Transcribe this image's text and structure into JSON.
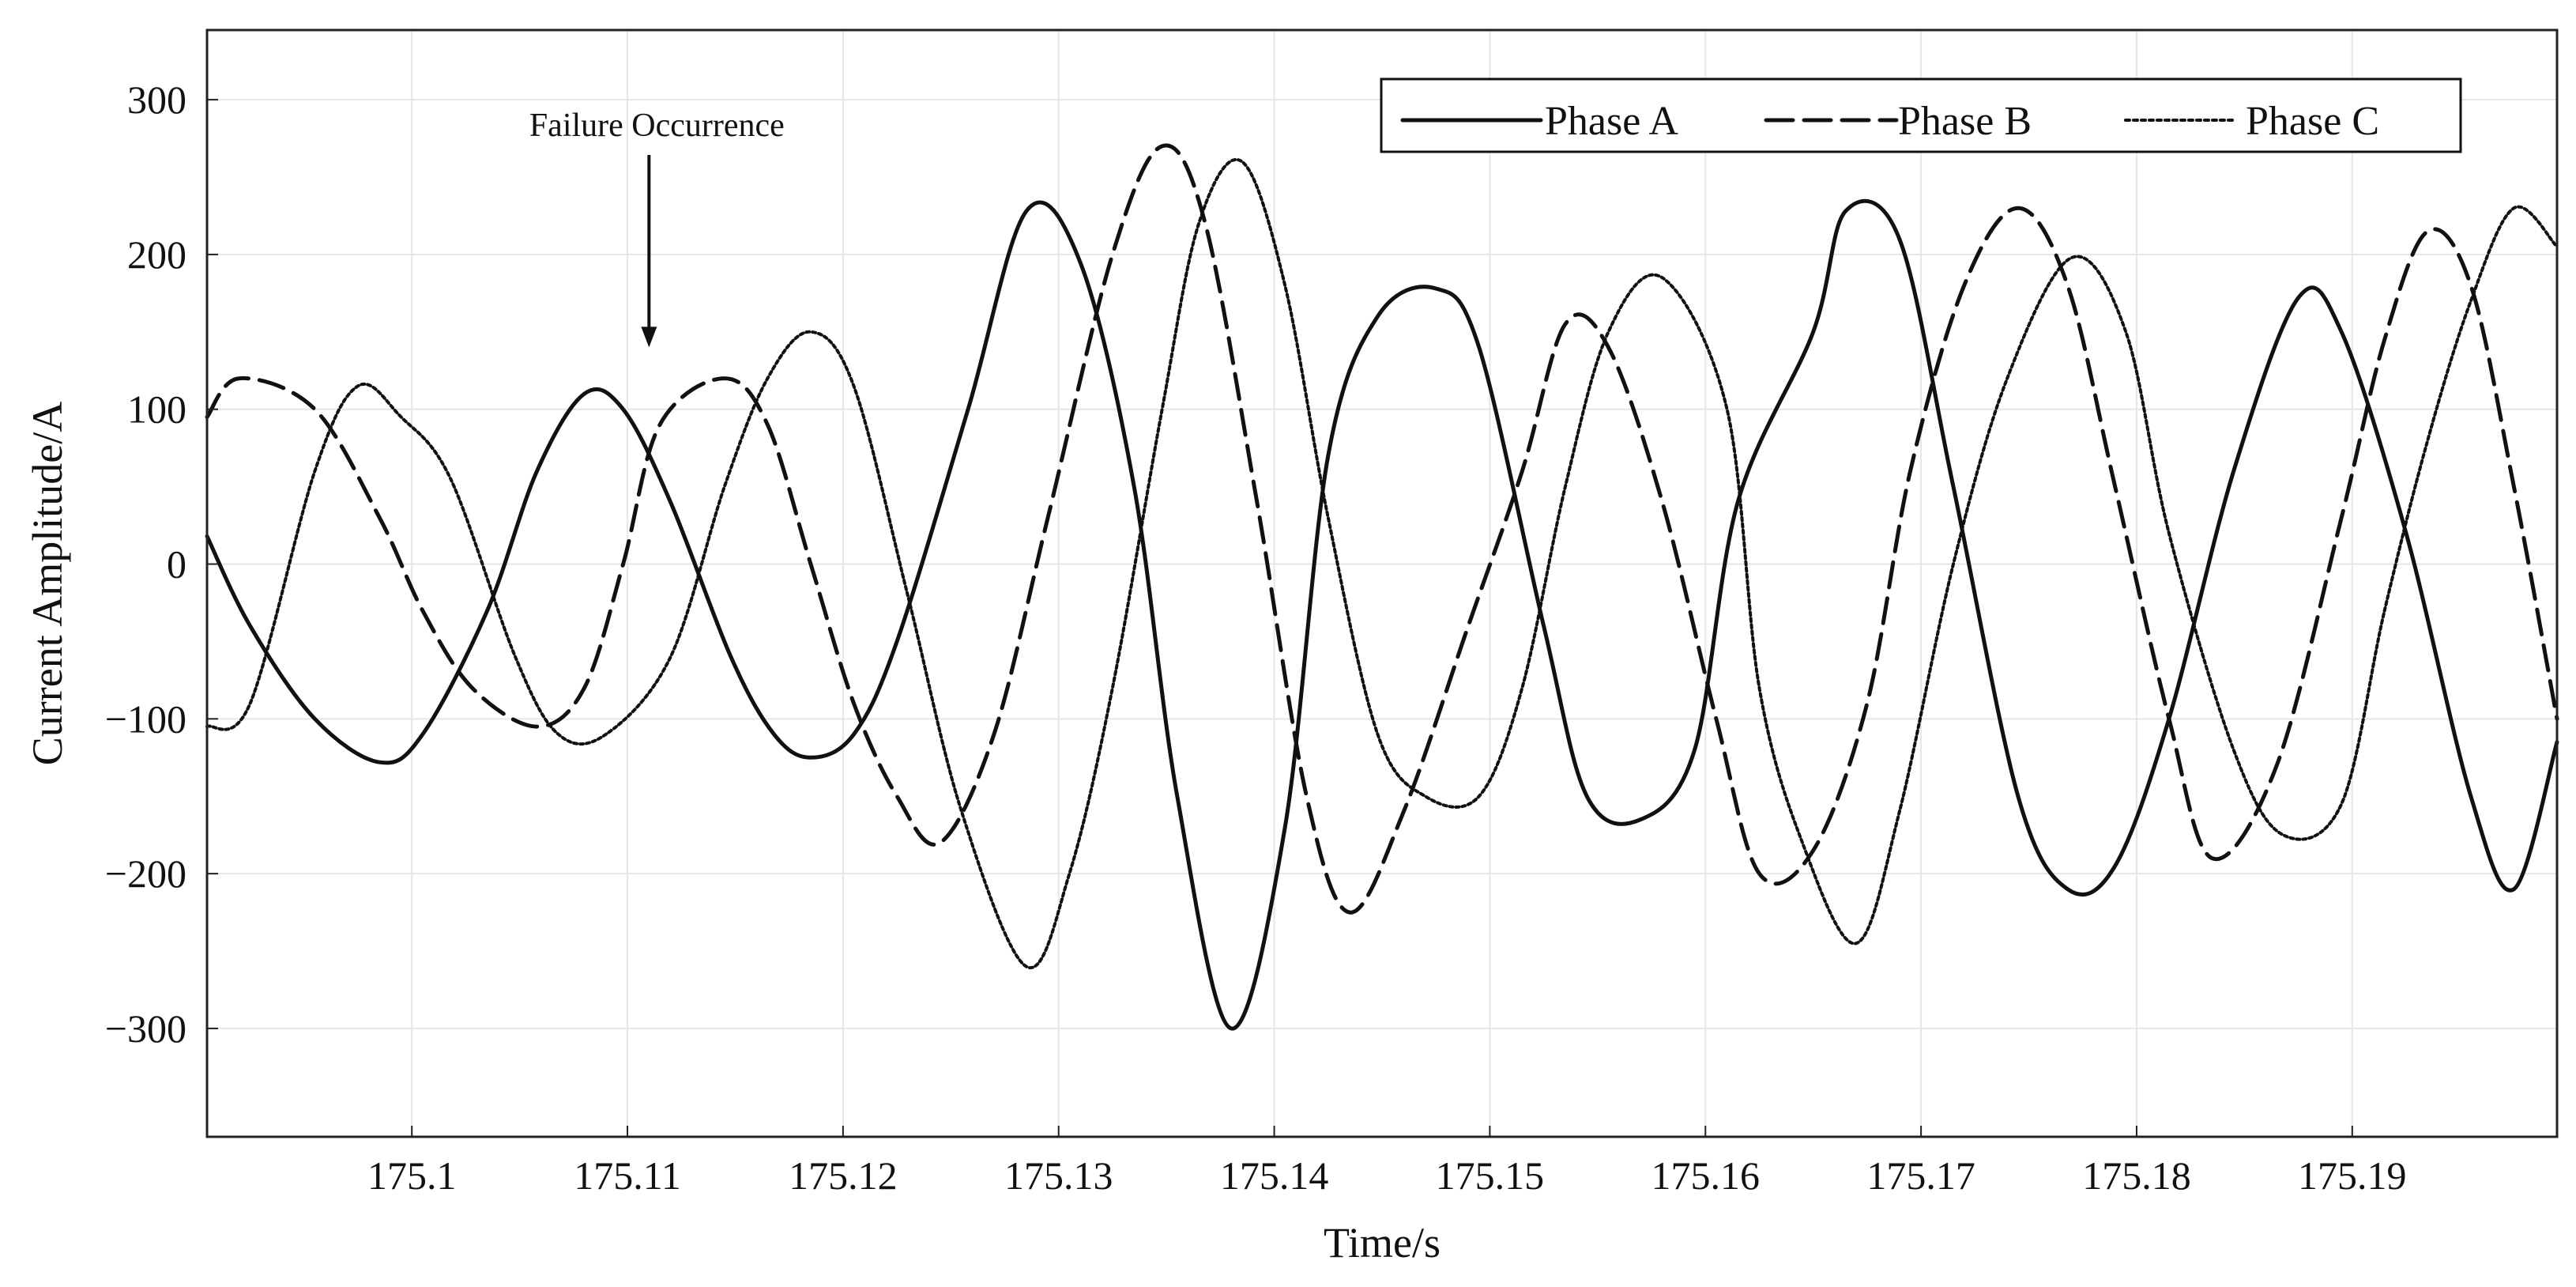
{
  "chart_data": {
    "type": "line",
    "xlabel": "Time/s",
    "ylabel": "Current Amplitude/A",
    "xlim": [
      175.0905,
      175.1995
    ],
    "ylim": [
      -370,
      345
    ],
    "xticks": [
      175.1,
      175.11,
      175.12,
      175.13,
      175.14,
      175.15,
      175.16,
      175.17,
      175.18,
      175.19
    ],
    "xtick_labels": [
      "175.1",
      "175.11",
      "175.12",
      "175.13",
      "175.14",
      "175.15",
      "175.16",
      "175.17",
      "175.18",
      "175.19"
    ],
    "yticks": [
      -300,
      -200,
      -100,
      0,
      100,
      200,
      300
    ],
    "ytick_labels": [
      "−300",
      "−200",
      "−100",
      "0",
      "100",
      "200",
      "300"
    ],
    "grid": true,
    "legend_position": "top-right",
    "annotation": {
      "text": "Failure Occurrence",
      "x": 175.111,
      "y": 140
    },
    "series": [
      {
        "name": "Phase A",
        "style": "solid",
        "x": [
          175.0905,
          175.0925,
          175.0955,
          175.0985,
          175.1005,
          175.1035,
          175.1058,
          175.108,
          175.1098,
          175.112,
          175.1148,
          175.1168,
          175.1185,
          175.1205,
          175.1225,
          175.1258,
          175.1285,
          175.131,
          175.1335,
          175.1355,
          175.138,
          175.1405,
          175.1425,
          175.1448,
          175.1475,
          175.1495,
          175.1525,
          175.1545,
          175.157,
          175.1595,
          175.1615,
          175.165,
          175.1665,
          175.169,
          175.1715,
          175.1745,
          175.1768,
          175.179,
          175.1815,
          175.1845,
          175.1875,
          175.1895,
          175.1925,
          175.1955,
          175.1975,
          175.1995
        ],
        "y": [
          18,
          -40,
          -100,
          -128,
          -110,
          -30,
          60,
          110,
          100,
          40,
          -60,
          -110,
          -125,
          -110,
          -50,
          100,
          228,
          195,
          50,
          -150,
          -300,
          -170,
          70,
          160,
          178,
          140,
          -40,
          -150,
          -165,
          -120,
          40,
          150,
          228,
          210,
          50,
          -150,
          -210,
          -195,
          -100,
          60,
          172,
          150,
          20,
          -150,
          -210,
          -115
        ]
      },
      {
        "name": "Phase B",
        "style": "dashed",
        "x": [
          175.0905,
          175.092,
          175.0955,
          175.0985,
          175.1005,
          175.1028,
          175.1058,
          175.108,
          175.1098,
          175.1115,
          175.1145,
          175.1165,
          175.1185,
          175.1205,
          175.1225,
          175.1245,
          175.127,
          175.1295,
          175.1325,
          175.1348,
          175.1368,
          175.1392,
          175.1415,
          175.1435,
          175.146,
          175.149,
          175.1515,
          175.1535,
          175.1555,
          175.158,
          175.1605,
          175.1625,
          175.165,
          175.1675,
          175.1695,
          175.172,
          175.1745,
          175.1768,
          175.179,
          175.1815,
          175.1835,
          175.1865,
          175.1895,
          175.1915,
          175.1935,
          175.1955,
          175.1975,
          175.1995
        ],
        "y": [
          95,
          120,
          100,
          30,
          -30,
          -80,
          -105,
          -80,
          0,
          90,
          120,
          90,
          0,
          -90,
          -150,
          -180,
          -110,
          30,
          200,
          270,
          220,
          40,
          -150,
          -225,
          -160,
          -40,
          60,
          155,
          140,
          40,
          -100,
          -200,
          -185,
          -90,
          60,
          180,
          230,
          180,
          50,
          -100,
          -190,
          -130,
          30,
          145,
          215,
          180,
          50,
          -100
        ]
      },
      {
        "name": "Phase C",
        "style": "dotted",
        "x": [
          175.0905,
          175.0925,
          175.0955,
          175.0975,
          175.0995,
          175.1018,
          175.1048,
          175.1068,
          175.109,
          175.112,
          175.1145,
          175.1165,
          175.1185,
          175.1205,
          175.123,
          175.1255,
          175.1285,
          175.1305,
          175.1325,
          175.1348,
          175.1365,
          175.1385,
          175.1405,
          175.1425,
          175.1448,
          175.147,
          175.1495,
          175.1515,
          175.1535,
          175.1555,
          175.158,
          175.161,
          175.1625,
          175.1645,
          175.167,
          175.169,
          175.1715,
          175.174,
          175.177,
          175.1795,
          175.1815,
          175.1845,
          175.1868,
          175.1895,
          175.1915,
          175.1935,
          175.1955,
          175.1975,
          175.1995
        ],
        "y": [
          -105,
          -90,
          60,
          115,
          95,
          55,
          -60,
          -110,
          -110,
          -60,
          50,
          120,
          150,
          115,
          -20,
          -160,
          -260,
          -200,
          -80,
          100,
          220,
          260,
          180,
          30,
          -110,
          -150,
          -150,
          -80,
          50,
          150,
          185,
          100,
          -80,
          -180,
          -245,
          -160,
          0,
          120,
          198,
          150,
          20,
          -120,
          -175,
          -155,
          -30,
          80,
          170,
          230,
          205
        ]
      }
    ]
  }
}
